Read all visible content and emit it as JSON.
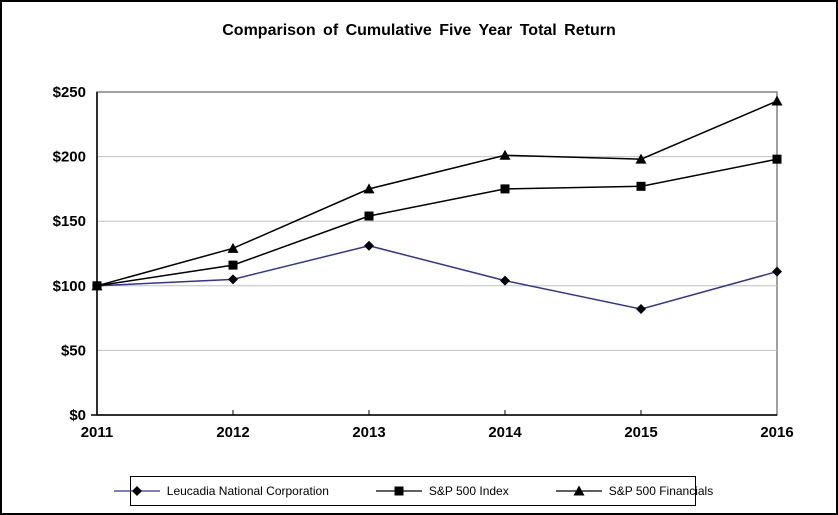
{
  "title": "Comparison of Cumulative Five Year Total Return",
  "chart_data": {
    "type": "line",
    "x": [
      2011,
      2012,
      2013,
      2014,
      2015,
      2016
    ],
    "xtick_labels": [
      "2011",
      "2012",
      "2013",
      "2014",
      "2015",
      "2016"
    ],
    "ytick_labels": [
      "$0",
      "$50",
      "$100",
      "$150",
      "$200",
      "$250"
    ],
    "ylim": [
      0,
      250
    ],
    "ytick_step": 50,
    "grid": "horizontal",
    "legend_position": "bottom",
    "series": [
      {
        "name": "Leucadia National Corporation",
        "marker": "diamond",
        "color": "#333399",
        "values": [
          100,
          105,
          131,
          104,
          82,
          111
        ]
      },
      {
        "name": "S&P 500 Index",
        "marker": "square",
        "color": "#000000",
        "values": [
          100,
          116,
          154,
          175,
          177,
          198
        ]
      },
      {
        "name": "S&P 500 Financials",
        "marker": "triangle",
        "color": "#000000",
        "values": [
          100,
          129,
          175,
          201,
          198,
          243
        ]
      }
    ]
  },
  "colors": {
    "background": "#ffffff",
    "grid": "#c0c0c0",
    "plot_border": "#808080",
    "axis": "#000000",
    "marker_fill": "#000000",
    "text": "#000000"
  }
}
